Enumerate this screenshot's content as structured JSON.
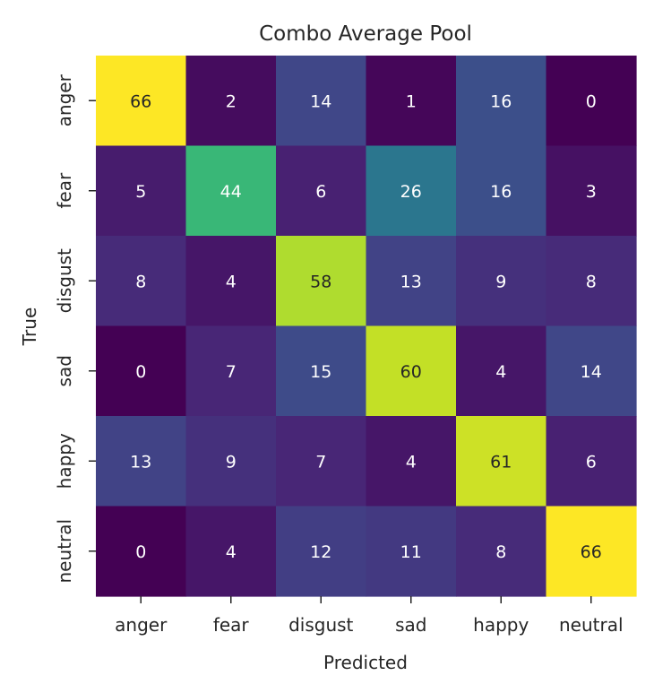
{
  "chart_data": {
    "type": "heatmap",
    "title": "Combo Average Pool",
    "xlabel": "Predicted",
    "ylabel": "True",
    "x_categories": [
      "anger",
      "fear",
      "disgust",
      "sad",
      "happy",
      "neutral"
    ],
    "y_categories": [
      "anger",
      "fear",
      "disgust",
      "sad",
      "happy",
      "neutral"
    ],
    "values": [
      [
        66,
        2,
        14,
        1,
        16,
        0
      ],
      [
        5,
        44,
        6,
        26,
        16,
        3
      ],
      [
        8,
        4,
        58,
        13,
        9,
        8
      ],
      [
        0,
        7,
        15,
        60,
        4,
        14
      ],
      [
        13,
        9,
        7,
        4,
        61,
        6
      ],
      [
        0,
        4,
        12,
        11,
        8,
        66
      ]
    ],
    "colormap": "viridis",
    "vmin": 0,
    "vmax": 66,
    "colorbar": false,
    "grid": false
  }
}
